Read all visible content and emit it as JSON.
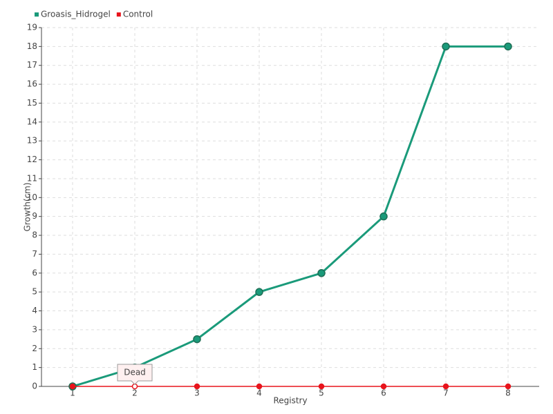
{
  "chart_data": {
    "type": "line",
    "x_label": "Registry",
    "y_label": "Growth(cm)",
    "categories": [
      "1",
      "2",
      "3",
      "4",
      "5",
      "6",
      "7",
      "8"
    ],
    "series": [
      {
        "name": "Groasis_Hidrogel",
        "color": "#1a9a7a",
        "values": [
          0,
          1,
          2.5,
          5,
          6,
          9,
          18,
          18
        ]
      },
      {
        "name": "Control",
        "color": "#e8141c",
        "values": [
          0,
          0,
          0,
          0,
          0,
          0,
          0,
          0
        ]
      }
    ],
    "annotation": "Dead",
    "ylim": [
      0,
      19
    ],
    "yticks": [
      0,
      1,
      2,
      3,
      4,
      5,
      6,
      7,
      8,
      9,
      10,
      11,
      12,
      13,
      14,
      15,
      16,
      17,
      18,
      19
    ],
    "grid": true,
    "legend": "top-left"
  }
}
